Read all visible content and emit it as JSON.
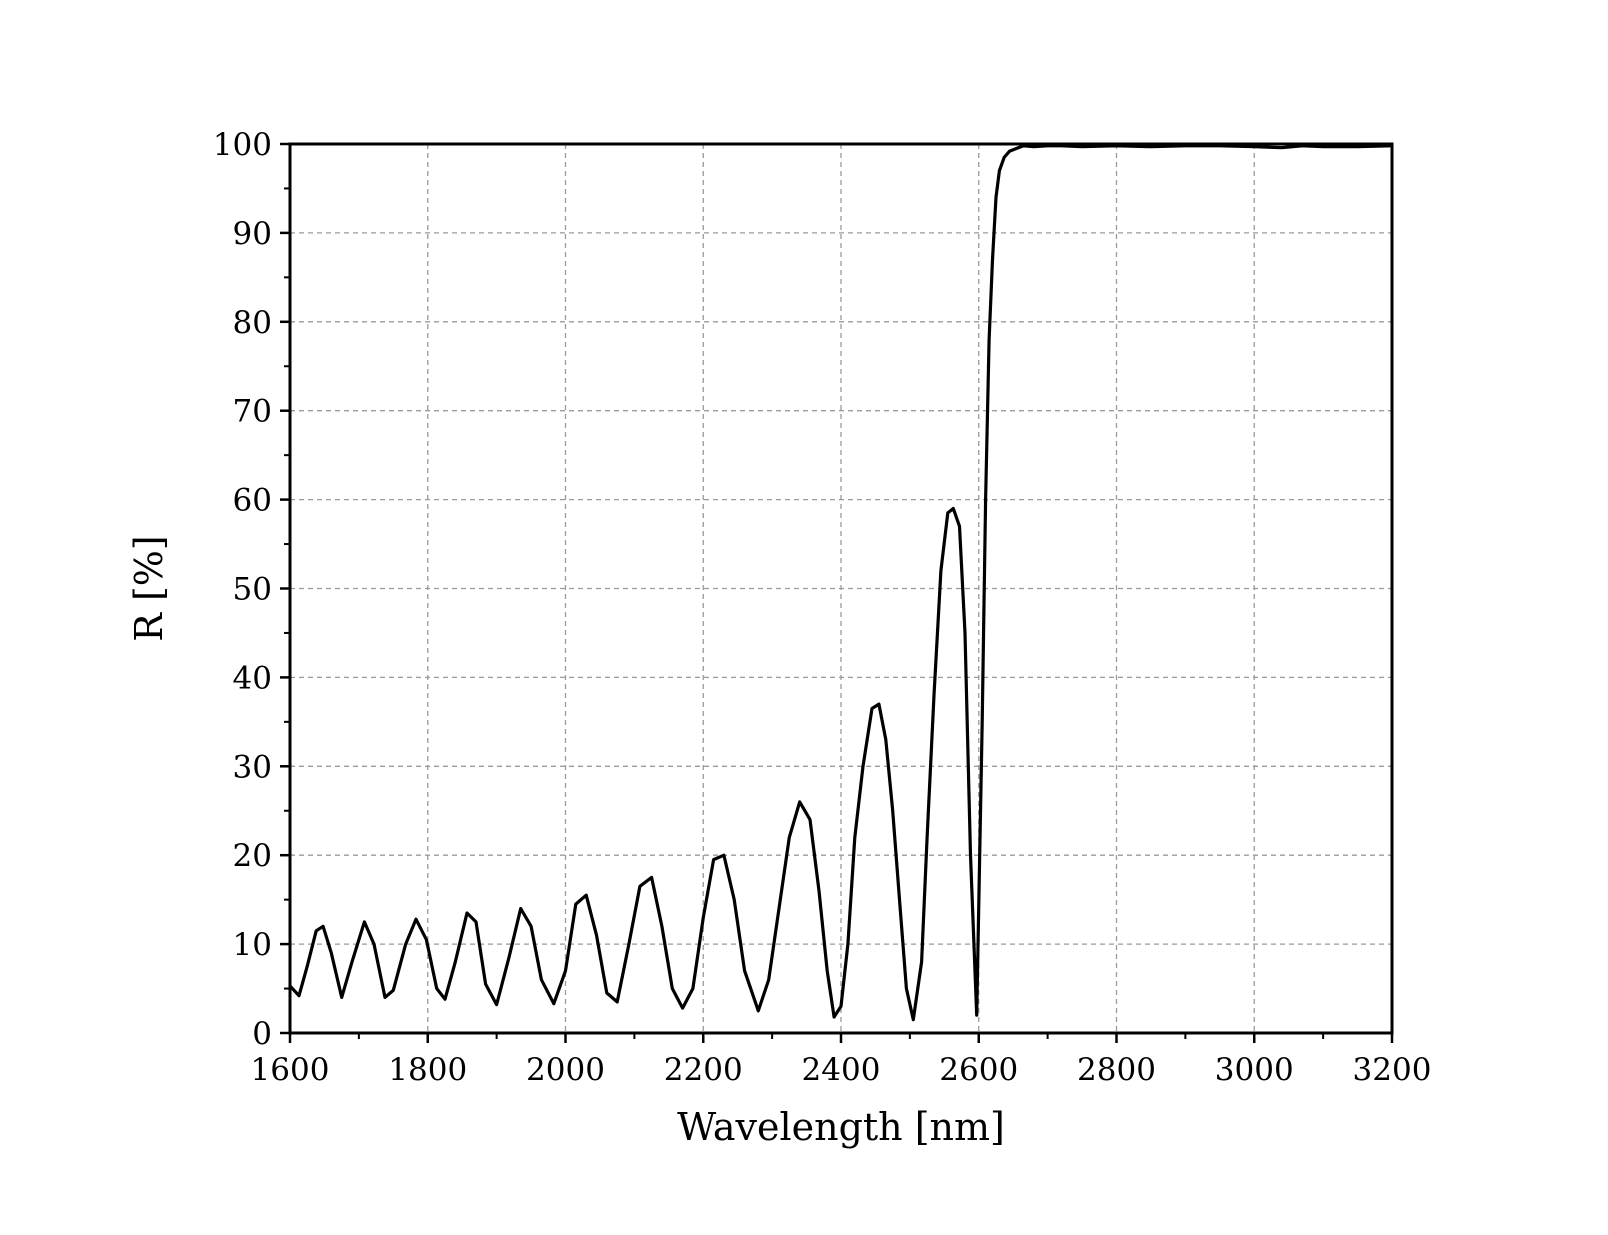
{
  "chart_data": {
    "type": "line",
    "title": "",
    "xlabel": "Wavelength [nm]",
    "ylabel": "R [%]",
    "xlim": [
      1600,
      3200
    ],
    "ylim": [
      0,
      100
    ],
    "grid": true,
    "x_ticks": [
      "1600",
      "1800",
      "2000",
      "2200",
      "2400",
      "2600",
      "2800",
      "3000",
      "3200"
    ],
    "y_ticks": [
      "0",
      "10",
      "20",
      "30",
      "40",
      "50",
      "60",
      "70",
      "80",
      "90",
      "100"
    ],
    "series": [
      {
        "name": "",
        "color": "#000000",
        "x": [
          1600,
          1613,
          1625,
          1638,
          1648,
          1660,
          1675,
          1690,
          1708,
          1722,
          1738,
          1750,
          1768,
          1783,
          1798,
          1813,
          1825,
          1840,
          1857,
          1870,
          1884,
          1900,
          1918,
          1935,
          1950,
          1965,
          1983,
          2000,
          2015,
          2030,
          2045,
          2060,
          2075,
          2092,
          2108,
          2125,
          2140,
          2155,
          2170,
          2185,
          2200,
          2215,
          2230,
          2245,
          2260,
          2280,
          2295,
          2310,
          2325,
          2340,
          2355,
          2368,
          2380,
          2390,
          2400,
          2410,
          2420,
          2432,
          2445,
          2455,
          2465,
          2475,
          2485,
          2495,
          2505,
          2517,
          2525,
          2535,
          2545,
          2555,
          2563,
          2572,
          2580,
          2588,
          2597,
          2605,
          2610,
          2615,
          2620,
          2625,
          2630,
          2637,
          2645,
          2655,
          2665,
          2680,
          2700,
          2720,
          2750,
          2800,
          2850,
          2900,
          2950,
          3000,
          3040,
          3070,
          3100,
          3150,
          3200
        ],
        "values": [
          5.3,
          4.2,
          7.5,
          11.5,
          12.0,
          9.0,
          4.0,
          8.0,
          12.5,
          10.0,
          4.0,
          4.8,
          10.0,
          12.8,
          10.5,
          5.0,
          3.8,
          8.0,
          13.5,
          12.5,
          5.5,
          3.2,
          8.5,
          14.0,
          12.0,
          6.0,
          3.3,
          7.0,
          14.5,
          15.5,
          11.0,
          4.5,
          3.5,
          10.0,
          16.5,
          17.5,
          12.0,
          5.0,
          2.8,
          5.0,
          13.0,
          19.5,
          20.0,
          15.0,
          7.0,
          2.5,
          6.0,
          14.0,
          22.0,
          26.0,
          24.0,
          16.0,
          7.0,
          1.8,
          3.0,
          10.0,
          22.0,
          30.0,
          36.5,
          37.0,
          33.0,
          25.0,
          15.0,
          5.0,
          1.5,
          8.0,
          22.0,
          38.0,
          52.0,
          58.5,
          59.0,
          57.0,
          45.0,
          20.0,
          2.0,
          35.0,
          60.0,
          78.0,
          87.0,
          94.0,
          97.0,
          98.5,
          99.2,
          99.5,
          99.8,
          99.7,
          99.8,
          99.8,
          99.7,
          99.8,
          99.7,
          99.8,
          99.8,
          99.7,
          99.6,
          99.8,
          99.7,
          99.7,
          99.8
        ]
      }
    ]
  }
}
